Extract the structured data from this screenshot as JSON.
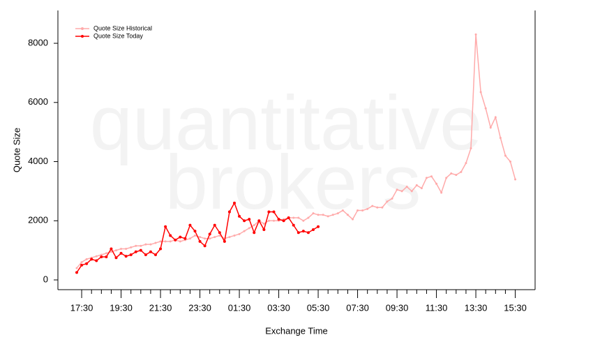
{
  "chart_data": {
    "type": "line",
    "watermark": [
      "quantitative",
      "brokers"
    ],
    "x_label": "Exchange Time",
    "y_label": "Quote Size",
    "categories": [
      null,
      "17:30",
      null,
      null,
      null,
      null,
      null,
      null,
      null,
      "19:30",
      null,
      null,
      null,
      null,
      null,
      null,
      null,
      "21:30",
      null,
      null,
      null,
      null,
      null,
      null,
      null,
      "23:30",
      null,
      null,
      null,
      null,
      null,
      null,
      null,
      "01:30",
      null,
      null,
      null,
      null,
      null,
      null,
      null,
      "03:30",
      null,
      null,
      null,
      null,
      null,
      null,
      null,
      "05:30",
      null,
      null,
      null,
      null,
      null,
      null,
      null,
      "07:30",
      null,
      null,
      null,
      null,
      null,
      null,
      null,
      "09:30",
      null,
      null,
      null,
      null,
      null,
      null,
      null,
      "11:30",
      null,
      null,
      null,
      null,
      null,
      null,
      null,
      "13:30",
      null,
      null,
      null,
      null,
      null,
      null,
      null,
      "15:30"
    ],
    "series": [
      {
        "name": "Quote Size Historical",
        "color": "#ffaaaa",
        "values": [
          400,
          600,
          700,
          750,
          800,
          850,
          900,
          950,
          1000,
          1050,
          1050,
          1100,
          1150,
          1150,
          1200,
          1200,
          1250,
          1300,
          1300,
          1300,
          1350,
          1300,
          1350,
          1400,
          1500,
          1450,
          1400,
          1400,
          1450,
          1500,
          1400,
          1450,
          1500,
          1550,
          1650,
          1750,
          1850,
          2000,
          1900,
          2000,
          2000,
          2000,
          2050,
          2100,
          2100,
          2100,
          2000,
          2100,
          2250,
          2200,
          2200,
          2150,
          2200,
          2250,
          2350,
          2200,
          2050,
          2350,
          2350,
          2400,
          2500,
          2450,
          2450,
          2650,
          2750,
          3050,
          3000,
          3150,
          3000,
          3200,
          3100,
          3450,
          3500,
          3250,
          2950,
          3450,
          3600,
          3550,
          3650,
          3950,
          4450,
          8300,
          6350,
          5800,
          5150,
          5500,
          4800,
          4200,
          4000,
          3400
        ]
      },
      {
        "name": "Quote Size Today",
        "color": "#ff0000",
        "values": [
          250,
          500,
          550,
          700,
          650,
          780,
          780,
          1050,
          750,
          900,
          800,
          850,
          950,
          1000,
          850,
          950,
          850,
          1050,
          1800,
          1500,
          1350,
          1450,
          1400,
          1850,
          1650,
          1300,
          1150,
          1550,
          1850,
          1600,
          1300,
          2300,
          2600,
          2150,
          2000,
          2050,
          1600,
          2000,
          1700,
          2300,
          2300,
          2050,
          2000,
          2100,
          1850,
          1600,
          1650,
          1600,
          1700,
          1800,
          null,
          null,
          null,
          null,
          null,
          null,
          null,
          null,
          null,
          null,
          null,
          null,
          null,
          null,
          null,
          null,
          null,
          null,
          null,
          null,
          null,
          null,
          null,
          null,
          null,
          null,
          null,
          null,
          null,
          null,
          null,
          null,
          null,
          null,
          null,
          null,
          null,
          null,
          null,
          null
        ]
      }
    ],
    "ylim": [
      -330,
      9110
    ],
    "yticks": [
      0,
      2000,
      4000,
      6000,
      8000
    ],
    "grid": false,
    "legend": "top-left"
  }
}
